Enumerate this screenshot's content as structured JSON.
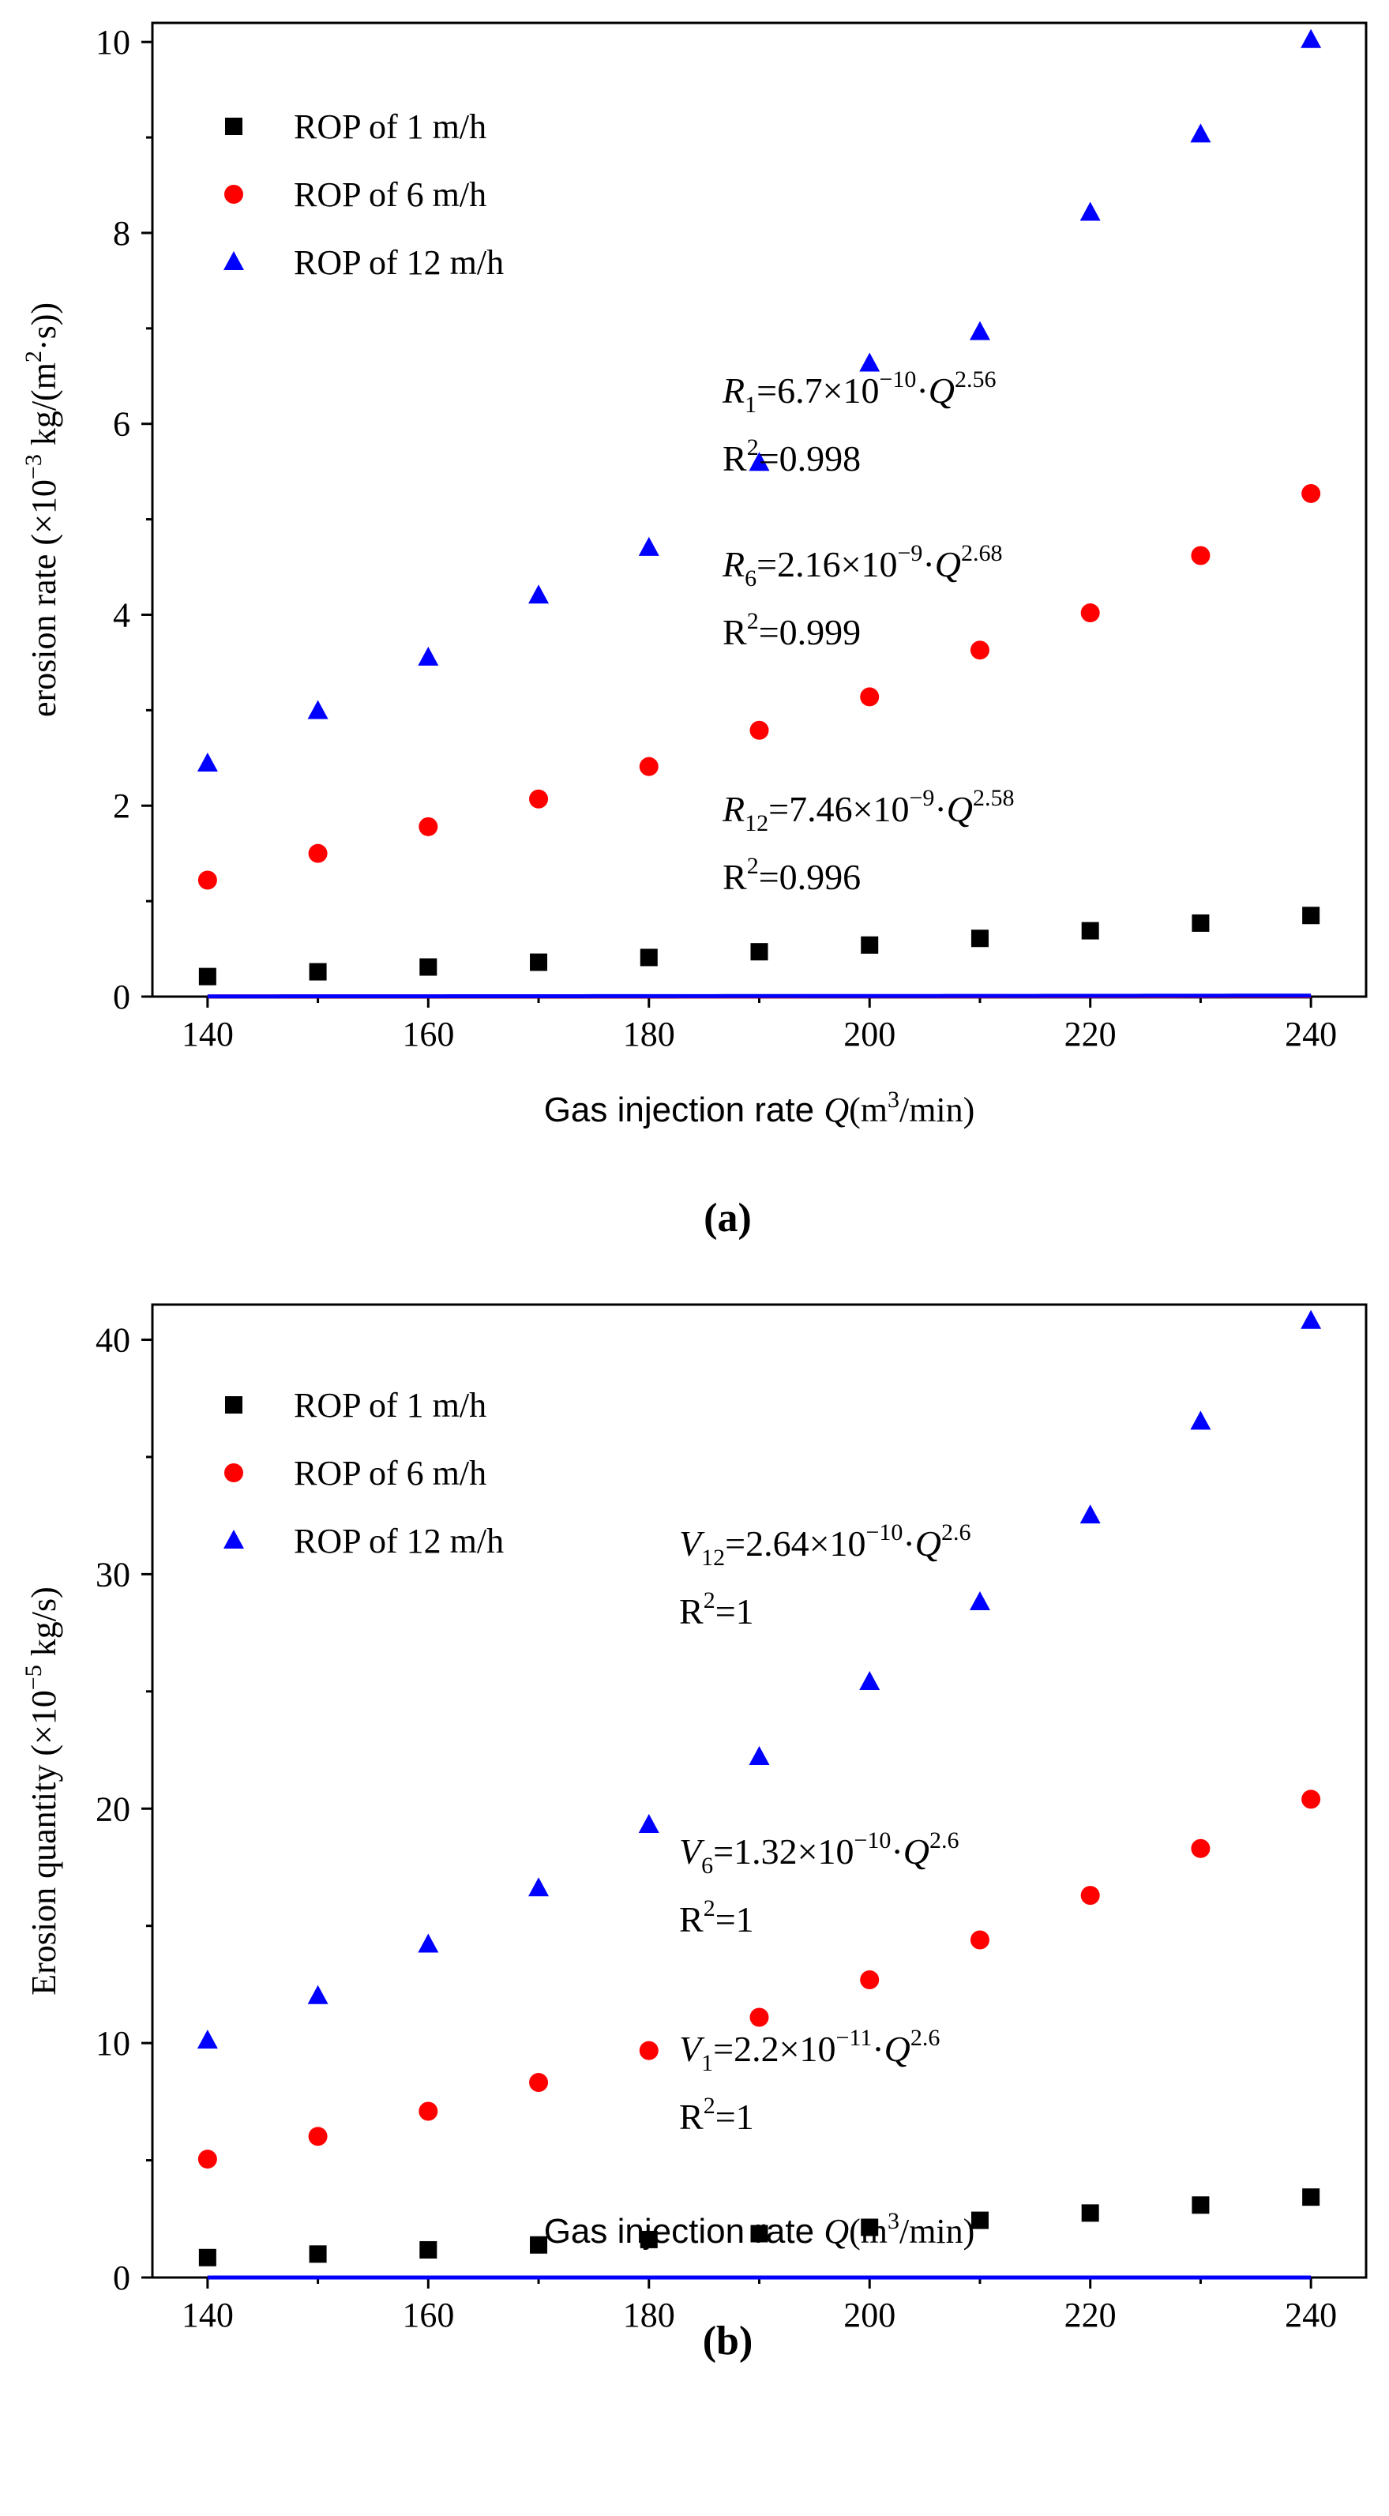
{
  "chart_data": [
    {
      "type": "scatter",
      "panel_label": "(a)",
      "xlabel": {
        "prefix": "Gas injection rate ",
        "var": "Q",
        "unit_open": "(m",
        "unit_sup": "3",
        "unit_close": "/min)"
      },
      "ylabel": {
        "prefix": "erosion rate (×10",
        "exp": "−3",
        "suffix": " kg/(m",
        "sup2": "2",
        "tail": "·s))"
      },
      "xlim": [
        135,
        245
      ],
      "ylim": [
        0,
        10.2
      ],
      "xticks": [
        140,
        160,
        180,
        200,
        220,
        240
      ],
      "xtick_labels": [
        "140",
        "160",
        "180",
        "200",
        "220",
        "240"
      ],
      "yticks": [
        0,
        2,
        4,
        6,
        8,
        10
      ],
      "ytick_labels": [
        "0",
        "2",
        "4",
        "6",
        "8",
        "10"
      ],
      "legend_position": "top-left",
      "x": [
        140,
        150,
        160,
        170,
        180,
        190,
        200,
        210,
        220,
        230,
        240
      ],
      "series": [
        {
          "name": "ROP of 1 m/h",
          "marker": "square",
          "color": "#000000",
          "values": [
            0.21,
            0.26,
            0.31,
            0.36,
            0.41,
            0.47,
            0.54,
            0.61,
            0.69,
            0.77,
            0.85
          ],
          "fit": {
            "a": 6.7e-10,
            "b": 2.56,
            "var": "R",
            "sub": "1",
            "coef": "6.7×10",
            "exp": "−10",
            "pow": "2.56",
            "r2_value": "0.998"
          }
        },
        {
          "name": "ROP of 6 m/h",
          "marker": "circle",
          "color": "#ff0000",
          "values": [
            1.22,
            1.5,
            1.78,
            2.07,
            2.41,
            2.79,
            3.14,
            3.63,
            4.02,
            4.62,
            5.27
          ],
          "fit": {
            "a": 2.16e-09,
            "b": 2.68,
            "var": "R",
            "sub": "6",
            "coef": "2.16×10",
            "exp": "−9",
            "pow": "2.68",
            "r2_value": "0.999"
          }
        },
        {
          "name": "ROP of 12 m/h",
          "marker": "triangle",
          "color": "#0000ff",
          "values": [
            2.44,
            2.99,
            3.55,
            4.2,
            4.7,
            5.59,
            6.63,
            6.96,
            8.21,
            9.03,
            10.02
          ],
          "fit": {
            "a": 7.46e-09,
            "b": 2.58,
            "var": "R",
            "sub": "12",
            "coef": "7.46×10",
            "exp": "−9",
            "pow": "2.58",
            "r2_value": "0.996"
          }
        }
      ]
    },
    {
      "type": "scatter",
      "panel_label": "(b)",
      "xlabel": {
        "prefix": "Gas injection rate ",
        "var": "Q",
        "unit_open": "(m",
        "unit_sup": "3",
        "unit_close": "/min)"
      },
      "ylabel": {
        "prefix": "Erosion quantity (×10",
        "exp": "−5",
        "suffix": " kg/s)"
      },
      "xlim": [
        135,
        245
      ],
      "ylim": [
        0,
        41.5
      ],
      "xticks": [
        140,
        160,
        180,
        200,
        220,
        240
      ],
      "xtick_labels": [
        "140",
        "160",
        "180",
        "200",
        "220",
        "240"
      ],
      "yticks": [
        0,
        10,
        20,
        30,
        40
      ],
      "ytick_labels": [
        "0",
        "10",
        "20",
        "30",
        "40"
      ],
      "legend_position": "top-left",
      "x": [
        140,
        150,
        160,
        170,
        180,
        190,
        200,
        210,
        220,
        230,
        240
      ],
      "series": [
        {
          "name": "ROP of 1 m/h",
          "marker": "square",
          "color": "#000000",
          "values": [
            0.85,
            1.0,
            1.18,
            1.39,
            1.62,
            1.87,
            2.14,
            2.44,
            2.75,
            3.09,
            3.43
          ],
          "fit": {
            "a": 2.2e-11,
            "b": 2.6,
            "var": "V",
            "sub": "1",
            "coef": "2.2×10",
            "exp": "−11",
            "pow": "2.6",
            "r2_value": "1"
          }
        },
        {
          "name": "ROP of 6 m/h",
          "marker": "circle",
          "color": "#ff0000",
          "values": [
            5.05,
            6.02,
            7.09,
            8.32,
            9.68,
            11.1,
            12.7,
            14.4,
            16.3,
            18.3,
            20.4
          ],
          "fit": {
            "a": 1.32e-10,
            "b": 2.6,
            "var": "V",
            "sub": "6",
            "coef": "1.32×10",
            "exp": "−10",
            "pow": "2.6",
            "r2_value": "1"
          }
        },
        {
          "name": "ROP of 12 m/h",
          "marker": "triangle",
          "color": "#0000ff",
          "values": [
            10.1,
            12.0,
            14.2,
            16.6,
            19.3,
            22.2,
            25.4,
            28.8,
            32.5,
            36.5,
            40.8
          ],
          "fit": {
            "a": 2.64e-10,
            "b": 2.6,
            "var": "V",
            "sub": "12",
            "coef": "2.64×10",
            "exp": "−10",
            "pow": "2.6",
            "r2_value": "1"
          }
        }
      ]
    }
  ]
}
